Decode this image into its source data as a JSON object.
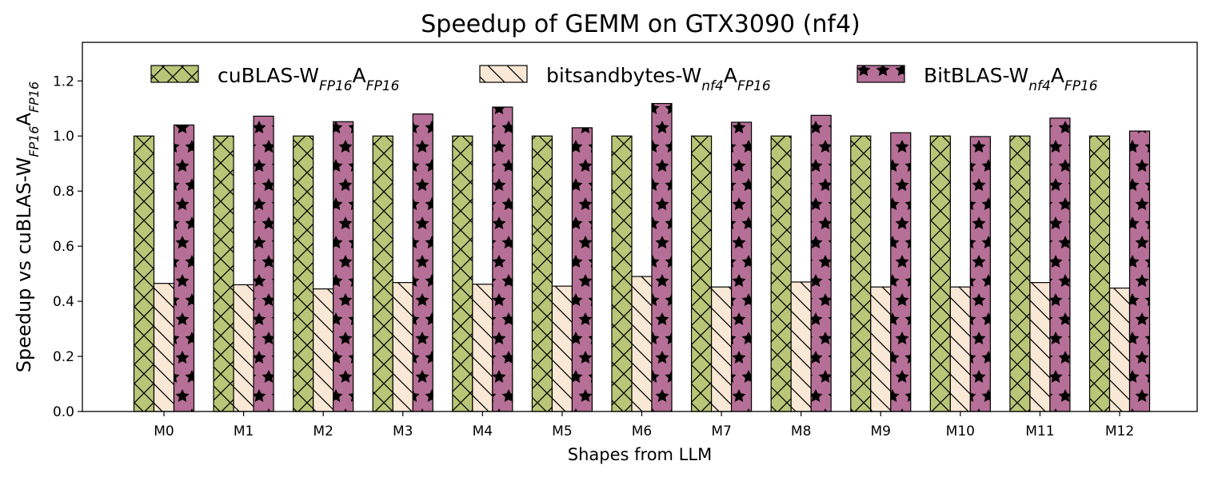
{
  "chart_data": {
    "type": "bar",
    "title": "Speedup of GEMM on GTX3090 (nf4)",
    "xlabel": "Shapes from LLM",
    "ylabel": {
      "segments": [
        {
          "text": "Speedup vs cuBLAS-W",
          "sub": false
        },
        {
          "text": "FP16",
          "sub": true
        },
        {
          "text": "A",
          "sub": false
        },
        {
          "text": "FP16",
          "sub": true
        }
      ]
    },
    "categories": [
      "M0",
      "M1",
      "M2",
      "M3",
      "M4",
      "M5",
      "M6",
      "M7",
      "M8",
      "M9",
      "M10",
      "M11",
      "M12"
    ],
    "ylim": [
      0,
      1.34
    ],
    "yticks": [
      "0.0",
      "0.2",
      "0.4",
      "0.6",
      "0.8",
      "1.0",
      "1.2"
    ],
    "grid": false,
    "legend_position": "top",
    "series": [
      {
        "name": "cuBLAS-WFP16AFP16",
        "name_segments": [
          {
            "text": "cuBLAS-W",
            "sub": false
          },
          {
            "text": "FP16",
            "sub": true
          },
          {
            "text": "A",
            "sub": false
          },
          {
            "text": "FP16",
            "sub": true
          }
        ],
        "color": "#b9c677",
        "hatch": "crosshatch",
        "values": [
          1.0,
          1.0,
          1.0,
          1.0,
          1.0,
          1.0,
          1.0,
          1.0,
          1.0,
          1.0,
          1.0,
          1.0,
          1.0
        ]
      },
      {
        "name": "bitsandbytes-Wnf4AFP16",
        "name_segments": [
          {
            "text": "bitsandbytes-W",
            "sub": false
          },
          {
            "text": "nf4",
            "sub": true
          },
          {
            "text": "A",
            "sub": false
          },
          {
            "text": "FP16",
            "sub": true
          }
        ],
        "color": "#f9e8d5",
        "hatch": "backslash",
        "values": [
          0.465,
          0.46,
          0.445,
          0.468,
          0.462,
          0.455,
          0.49,
          0.452,
          0.47,
          0.452,
          0.452,
          0.468,
          0.448
        ]
      },
      {
        "name": "BitBLAS-Wnf4AFP16",
        "name_segments": [
          {
            "text": "BitBLAS-W",
            "sub": false
          },
          {
            "text": "nf4",
            "sub": true
          },
          {
            "text": "A",
            "sub": false
          },
          {
            "text": "FP16",
            "sub": true
          }
        ],
        "color": "#b66f96",
        "hatch": "stars",
        "values": [
          1.04,
          1.072,
          1.052,
          1.08,
          1.105,
          1.03,
          1.118,
          1.05,
          1.075,
          1.012,
          0.998,
          1.065,
          1.018
        ]
      }
    ]
  }
}
